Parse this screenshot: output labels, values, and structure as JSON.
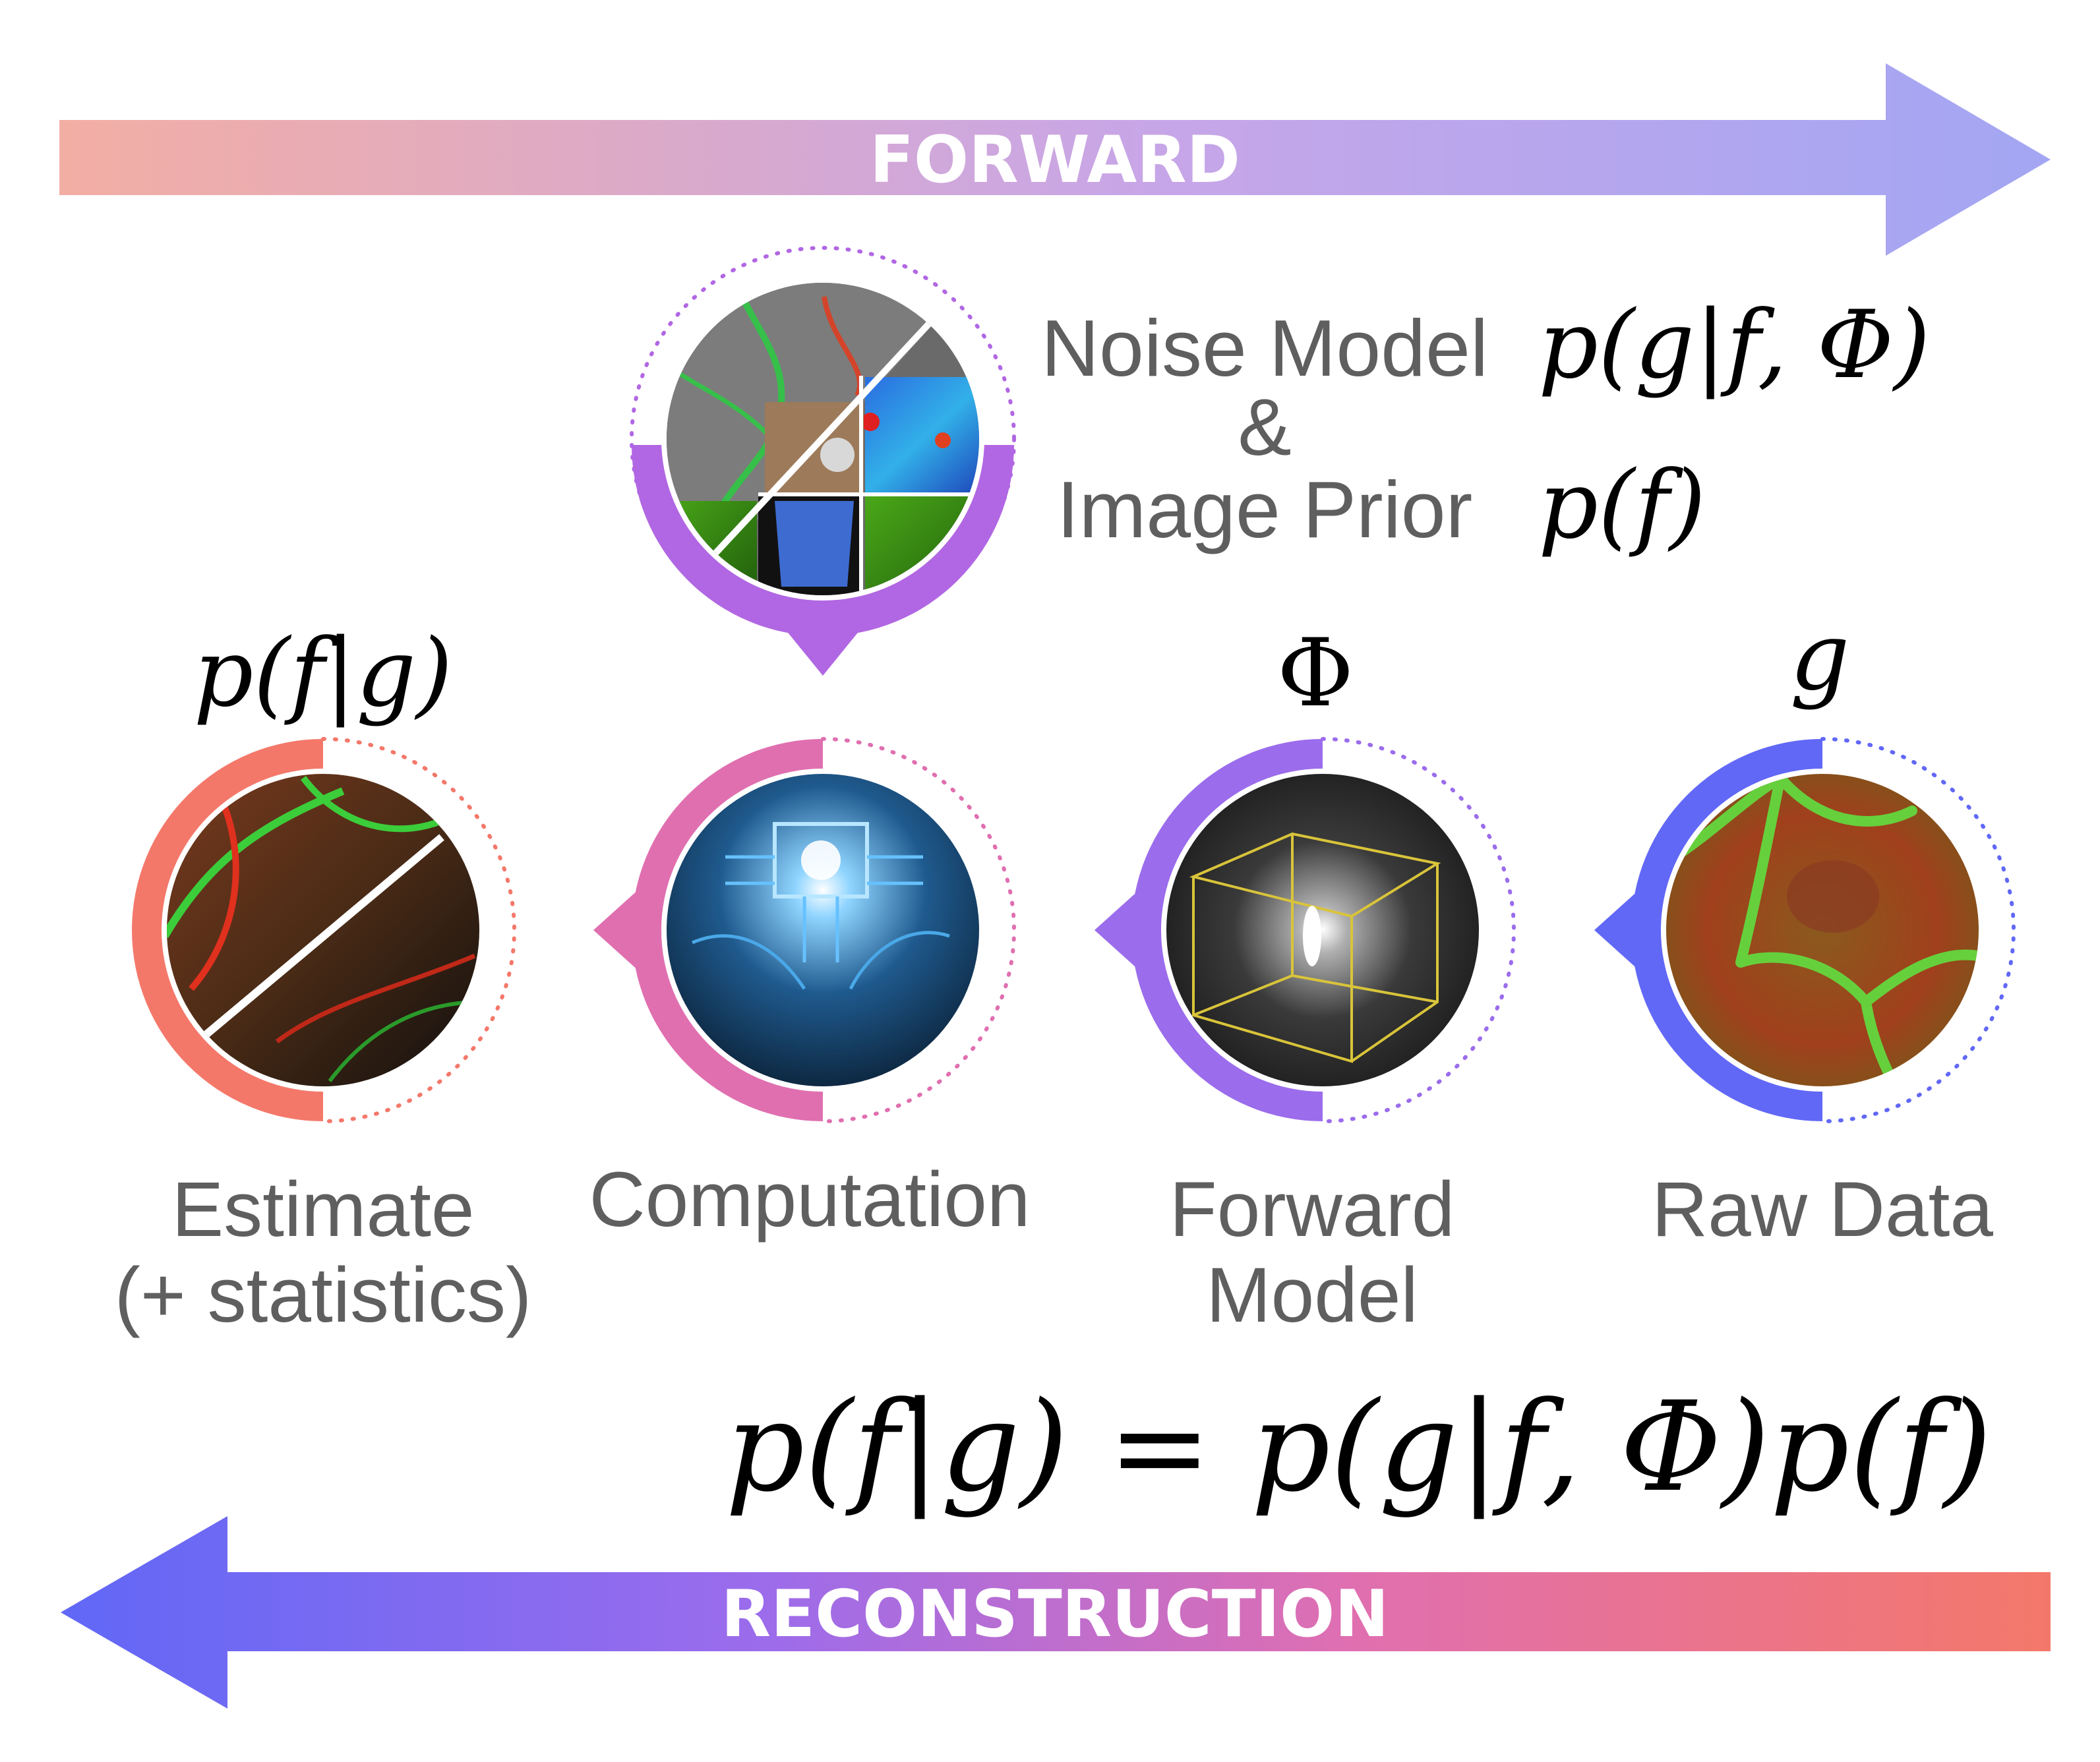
{
  "arrows": {
    "forward": {
      "label": "FORWARD",
      "gradient": [
        "#f3aea4",
        "#c7a6e8",
        "#a3a6f3"
      ]
    },
    "reconstruction": {
      "label": "RECONSTRUCTION",
      "gradient": [
        "#6168f6",
        "#9b6cec",
        "#e06fb0",
        "#f4786a"
      ]
    }
  },
  "prior": {
    "line1": "Noise Model",
    "line2": "&",
    "line3": "Image Prior",
    "eq_noise": "p(g|f, Φ)",
    "eq_prior": "p(f)",
    "ring_color": "#b167e3"
  },
  "stages": [
    {
      "id": "estimate",
      "symbol": "p(f|g)",
      "label_line1": "Estimate",
      "label_line2": "(+ statistics)",
      "ring_color": "#f4786a",
      "disk_icon": "microscopy-estimate-icon"
    },
    {
      "id": "computation",
      "symbol": "",
      "label_line1": "Computation",
      "label_line2": "",
      "ring_color": "#e06fb0",
      "disk_icon": "circuit-brain-icon"
    },
    {
      "id": "forward-model",
      "symbol": "Φ",
      "label_line1": "Forward",
      "label_line2": "Model",
      "ring_color": "#9b6cec",
      "disk_icon": "psf-volume-icon"
    },
    {
      "id": "raw-data",
      "symbol": "g",
      "label_line1": "Raw Data",
      "label_line2": "",
      "ring_color": "#6168f6",
      "disk_icon": "raw-microscopy-icon"
    }
  ],
  "bayes_equation": "p(f|g) = p(g|f, Φ)p(f)"
}
